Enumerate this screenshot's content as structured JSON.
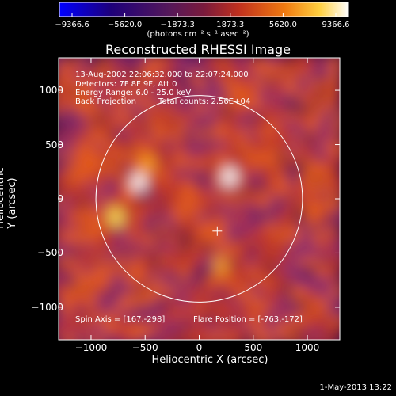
{
  "colorbar": {
    "ticks": [
      "−9366.6",
      "−5620.0",
      "−1873.3",
      "1873.3",
      "5620.0",
      "9366.6"
    ],
    "units": "(photons cm⁻² s⁻¹ asec⁻²)"
  },
  "header": {
    "title": "Reconstructed RHESSI Image"
  },
  "info": {
    "time_range": "13-Aug-2002 22:06:32.000 to 22:07:24.000",
    "detectors": "Detectors: 7F 8F 9F, Att 0",
    "energy": "Energy Range: 6.0 - 25.0 keV",
    "method": "Back Projection",
    "counts": "Total counts: 2.56E+04",
    "spin_axis": "Spin Axis = [167,-298]",
    "flare_position": "Flare Position = [-763,-172]"
  },
  "footer": {
    "timestamp": "1-May-2013 13:22"
  },
  "chart_data": {
    "type": "heatmap",
    "title": "Reconstructed RHESSI Image",
    "xlabel": "Heliocentric X (arcsec)",
    "ylabel": "Heliocentric Y (arcsec)",
    "xlim": [
      -1300,
      1300
    ],
    "ylim": [
      -1300,
      1300
    ],
    "xticks": [
      -1000,
      -500,
      0,
      500,
      1000
    ],
    "xtick_labels": [
      "−1000",
      "−500",
      "0",
      "500",
      "1000"
    ],
    "yticks": [
      1000,
      500,
      0,
      -500,
      -1000
    ],
    "ytick_labels": [
      "1000",
      "500",
      "0",
      "−500",
      "−1000"
    ],
    "zlim": [
      -9366.6,
      9366.6
    ],
    "colormap": [
      "#0000ff",
      "#2d008a",
      "#5a1a8a",
      "#8b2c6a",
      "#c0392b",
      "#e35a1a",
      "#f7a21b",
      "#ffe75a",
      "#ffffff"
    ],
    "solar_limb_radius": 955,
    "spin_axis": [
      167,
      -298
    ],
    "bright_sources": [
      {
        "x": 280,
        "y": 200,
        "value": 9366.6
      },
      {
        "x": -560,
        "y": 150,
        "value": 8200
      },
      {
        "x": -770,
        "y": -170,
        "value": 7800
      },
      {
        "x": -480,
        "y": 320,
        "value": 5200
      },
      {
        "x": 200,
        "y": -620,
        "value": 5000
      }
    ],
    "grid": false
  }
}
